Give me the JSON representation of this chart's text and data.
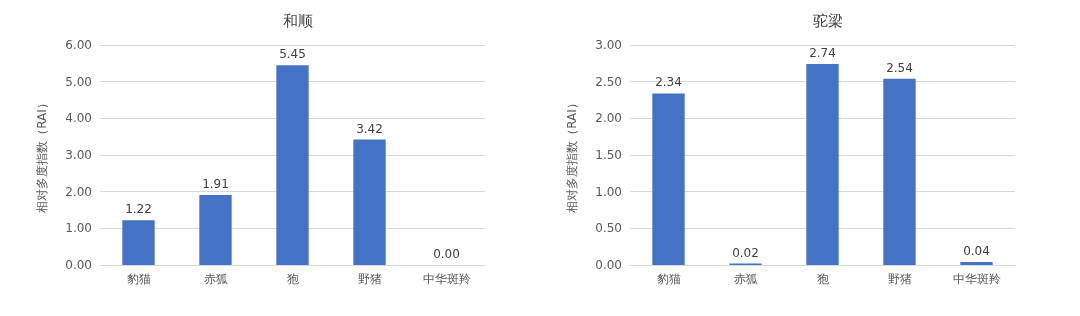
{
  "chart_data": [
    {
      "type": "bar",
      "title": "和顺",
      "ylabel": "相对多度指数（RAI）",
      "categories": [
        "豹猫",
        "赤狐",
        "狍",
        "野猪",
        "中华斑羚"
      ],
      "values": [
        1.22,
        1.91,
        5.45,
        3.42,
        0.0
      ],
      "value_labels": [
        "1.22",
        "1.91",
        "5.45",
        "3.42",
        "0.00"
      ],
      "color": "#4472c4",
      "ylim": [
        0,
        6
      ],
      "yticks": [
        {
          "value": 0,
          "label": "0.00"
        },
        {
          "value": 1,
          "label": "1.00"
        },
        {
          "value": 2,
          "label": "2.00"
        },
        {
          "value": 3,
          "label": "3.00"
        },
        {
          "value": 4,
          "label": "4.00"
        },
        {
          "value": 5,
          "label": "5.00"
        },
        {
          "value": 6,
          "label": "6.00"
        }
      ],
      "grid": "y"
    },
    {
      "type": "bar",
      "title": "驼梁",
      "ylabel": "相对多度指数（RAI）",
      "categories": [
        "豹猫",
        "赤狐",
        "狍",
        "野猪",
        "中华斑羚"
      ],
      "values": [
        2.34,
        0.02,
        2.74,
        2.54,
        0.04
      ],
      "value_labels": [
        "2.34",
        "0.02",
        "2.74",
        "2.54",
        "0.04"
      ],
      "color": "#4472c4",
      "ylim": [
        0,
        3
      ],
      "yticks": [
        {
          "value": 0,
          "label": "0.00"
        },
        {
          "value": 0.5,
          "label": "0.50"
        },
        {
          "value": 1,
          "label": "1.00"
        },
        {
          "value": 1.5,
          "label": "1.50"
        },
        {
          "value": 2,
          "label": "2.00"
        },
        {
          "value": 2.5,
          "label": "2.50"
        },
        {
          "value": 3,
          "label": "3.00"
        }
      ],
      "grid": "y"
    }
  ]
}
